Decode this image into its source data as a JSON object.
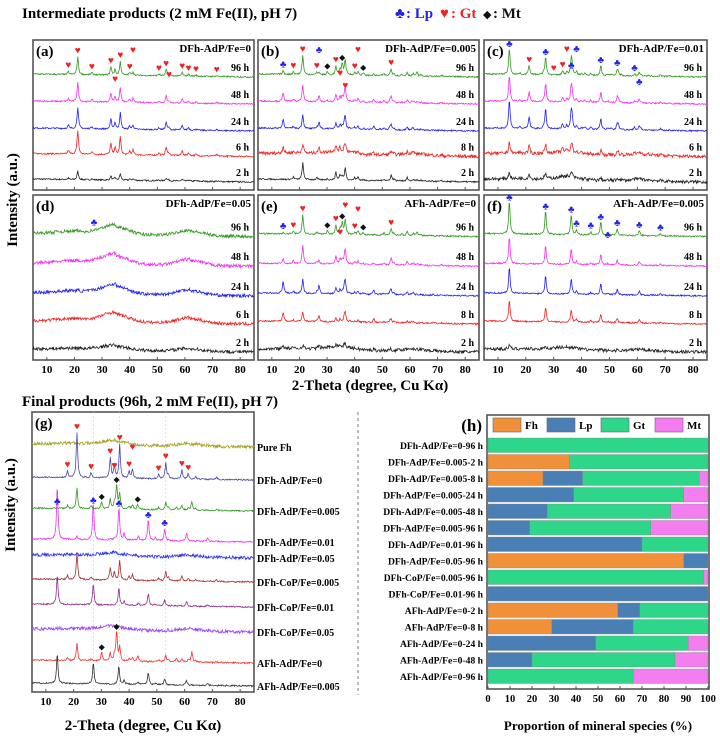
{
  "section_titles": {
    "intermediate": "Intermediate products (2 mM Fe(II), pH 7)",
    "final": "Final products (96h, 2 mM Fe(II), pH 7)"
  },
  "legend_symbols": {
    "lp": {
      "symbol": "♣",
      "label": ": Lp",
      "color": "#2222ee"
    },
    "gt": {
      "symbol": "♥",
      "label": ": Gt",
      "color": "#ee2222"
    },
    "mt": {
      "symbol": "◆",
      "label": ": Mt",
      "color": "#111111"
    }
  },
  "axis_labels": {
    "intensity": "Intensity (a.u.)",
    "two_theta": "2-Theta (degree, Cu Kα)",
    "proportion": "Proportion of mineral species (%)"
  },
  "x_ticks": [
    "10",
    "20",
    "30",
    "40",
    "50",
    "60",
    "70",
    "80"
  ],
  "reference_peaks": {
    "gt": [
      [
        17.8,
        0.15
      ],
      [
        21.2,
        1
      ],
      [
        26.3,
        0.12
      ],
      [
        33.2,
        0.45
      ],
      [
        34.7,
        0.3
      ],
      [
        36.6,
        0.75
      ],
      [
        40,
        0.15
      ],
      [
        41.2,
        0.2
      ],
      [
        50.6,
        0.1
      ],
      [
        53.2,
        0.35
      ],
      [
        54.2,
        0.1
      ],
      [
        59,
        0.2
      ],
      [
        61.3,
        0.12
      ],
      [
        64,
        0.06
      ],
      [
        71.5,
        0.05
      ]
    ],
    "lp": [
      [
        14.1,
        1
      ],
      [
        27.1,
        0.7
      ],
      [
        36.3,
        0.6
      ],
      [
        38.2,
        0.12
      ],
      [
        43.3,
        0.08
      ],
      [
        46.9,
        0.4
      ],
      [
        49.4,
        0.05
      ],
      [
        52.8,
        0.2
      ],
      [
        60.7,
        0.15
      ],
      [
        68.3,
        0.06
      ]
    ],
    "mt": [
      [
        30.1,
        0.3
      ],
      [
        35.5,
        1
      ],
      [
        43.1,
        0.2
      ],
      [
        57,
        0.12
      ],
      [
        62.6,
        0.35
      ]
    ],
    "fh": [
      [
        35,
        0.3,
        4.5
      ],
      [
        62,
        0.18,
        4.5
      ],
      [
        22,
        0.1,
        8
      ]
    ]
  },
  "chart_data": [
    {
      "type": "line",
      "panel": "(a)",
      "title": "DFh-AdP/Fe=0",
      "xlim": [
        5,
        85
      ],
      "xlabel": "2-Theta (degree, Cu Kα)",
      "ylabel": "Intensity (a.u.)",
      "series": [
        {
          "name": "2 h",
          "color": "#222222",
          "phases": {
            "gt": 0.35
          }
        },
        {
          "name": "6 h",
          "color": "#ee2222",
          "phases": {
            "gt": 1.0
          }
        },
        {
          "name": "24 h",
          "color": "#2222ee",
          "phases": {
            "gt": 0.9
          }
        },
        {
          "name": "48 h",
          "color": "#ee33ee",
          "phases": {
            "gt": 0.8
          }
        },
        {
          "name": "96 h",
          "color": "#339922",
          "phases": {
            "gt": 0.75
          },
          "markers": [
            {
              "type": "gt",
              "x": [
                17.8,
                21.2,
                26.3,
                33.2,
                34.7,
                36.6,
                40,
                41.2,
                50.6,
                53.2,
                54.2,
                59,
                61.3,
                64,
                71.5
              ]
            }
          ]
        }
      ]
    },
    {
      "type": "line",
      "panel": "(b)",
      "title": "DFh-AdP/Fe=0.005",
      "xlim": [
        5,
        85
      ],
      "series": [
        {
          "name": "2 h",
          "color": "#222222",
          "phases": {
            "gt": 0.7,
            "mt": 0.15
          }
        },
        {
          "name": "8 h",
          "color": "#ee2222",
          "phases": {
            "gt": 0.4,
            "lp": 0.3,
            "fh": 0.4
          }
        },
        {
          "name": "24 h",
          "color": "#2222ee",
          "phases": {
            "gt": 0.6,
            "lp": 0.4,
            "mt": 0.1
          }
        },
        {
          "name": "48 h",
          "color": "#ee33ee",
          "phases": {
            "gt": 0.7,
            "lp": 0.35,
            "mt": 0.2
          }
        },
        {
          "name": "96 h",
          "color": "#339922",
          "phases": {
            "gt": 0.8,
            "lp": 0.15,
            "mt": 0.45
          },
          "markers": [
            {
              "type": "lp",
              "x": [
                14.1,
                27.1
              ]
            },
            {
              "type": "gt",
              "x": [
                17.8,
                21.2,
                26.3,
                33.2,
                34.7,
                36.6,
                40,
                41.2,
                53.2
              ]
            },
            {
              "type": "mt",
              "x": [
                30.1,
                35.5,
                43.1
              ]
            }
          ]
        }
      ]
    },
    {
      "type": "line",
      "panel": "(c)",
      "title": "DFh-AdP/Fe=0.01",
      "xlim": [
        5,
        85
      ],
      "series": [
        {
          "name": "2 h",
          "color": "#222222",
          "phases": {
            "lp": 0.3,
            "gt": 0.2,
            "fh": 0.3
          }
        },
        {
          "name": "6 h",
          "color": "#ee2222",
          "phases": {
            "lp": 0.5,
            "gt": 0.3,
            "fh": 0.3
          }
        },
        {
          "name": "24 h",
          "color": "#2222ee",
          "phases": {
            "lp": 1.2,
            "gt": 0.5
          }
        },
        {
          "name": "48 h",
          "color": "#ee33ee",
          "phases": {
            "lp": 1.1,
            "gt": 0.4
          }
        },
        {
          "name": "96 h",
          "color": "#339922",
          "phases": {
            "lp": 1.1,
            "gt": 0.4
          },
          "markers": [
            {
              "type": "lp",
              "x": [
                14.1,
                27.1,
                36.3,
                38.2,
                46.9,
                52.8,
                59,
                60.7
              ]
            },
            {
              "type": "gt",
              "x": [
                21.2,
                30,
                33.2,
                34.7
              ]
            }
          ]
        }
      ]
    },
    {
      "type": "line",
      "panel": "(d)",
      "title": "DFh-AdP/Fe=0.05",
      "xlim": [
        5,
        85
      ],
      "series": [
        {
          "name": "2 h",
          "color": "#222222",
          "phases": {
            "fh": 0.5
          }
        },
        {
          "name": "6 h",
          "color": "#ee2222",
          "phases": {
            "fh": 1.0
          }
        },
        {
          "name": "24 h",
          "color": "#2222ee",
          "phases": {
            "fh": 1.0
          }
        },
        {
          "name": "48 h",
          "color": "#ee33ee",
          "phases": {
            "fh": 1.1
          }
        },
        {
          "name": "96 h",
          "color": "#339922",
          "phases": {
            "fh": 1.0,
            "lp": 0.05
          },
          "markers": [
            {
              "type": "lp",
              "x": [
                27.1
              ]
            }
          ]
        }
      ]
    },
    {
      "type": "line",
      "panel": "(e)",
      "title": "AFh-AdP/Fe=0",
      "xlim": [
        5,
        85
      ],
      "series": [
        {
          "name": "2 h",
          "color": "#222222",
          "phases": {
            "lp": 0.15,
            "gt": 0.15,
            "fh": 0.4
          }
        },
        {
          "name": "8 h",
          "color": "#ee2222",
          "phases": {
            "lp": 0.4,
            "gt": 0.4
          }
        },
        {
          "name": "24 h",
          "color": "#2222ee",
          "phases": {
            "lp": 0.5,
            "gt": 0.6,
            "mt": 0.1
          }
        },
        {
          "name": "48 h",
          "color": "#ee33ee",
          "phases": {
            "lp": 0.2,
            "gt": 0.8,
            "mt": 0.2
          }
        },
        {
          "name": "96 h",
          "color": "#339922",
          "phases": {
            "gt": 0.8,
            "mt": 0.5,
            "lp": 0.05
          },
          "markers": [
            {
              "type": "lp",
              "x": [
                14.1
              ]
            },
            {
              "type": "gt",
              "x": [
                17.8,
                21.2,
                33.2,
                34.7,
                36.6,
                40,
                41.2,
                53.2
              ]
            },
            {
              "type": "mt",
              "x": [
                30.1,
                35.5,
                43.1
              ]
            }
          ]
        }
      ]
    },
    {
      "type": "line",
      "panel": "(f)",
      "title": "AFh-AdP/Fe=0.005",
      "xlim": [
        5,
        85
      ],
      "series": [
        {
          "name": "2 h",
          "color": "#222222",
          "phases": {
            "lp": 0.15,
            "fh": 0.3
          }
        },
        {
          "name": "8 h",
          "color": "#ee2222",
          "phases": {
            "lp": 0.9
          }
        },
        {
          "name": "24 h",
          "color": "#2222ee",
          "phases": {
            "lp": 1.1
          }
        },
        {
          "name": "48 h",
          "color": "#ee33ee",
          "phases": {
            "lp": 1.1
          }
        },
        {
          "name": "96 h",
          "color": "#339922",
          "phases": {
            "lp": 1.4
          },
          "markers": [
            {
              "type": "lp",
              "x": [
                14.1,
                27.1,
                36.3,
                38.2,
                43.3,
                46.9,
                49.4,
                52.8,
                60.7,
                68.3
              ]
            }
          ]
        }
      ]
    },
    {
      "type": "line",
      "panel": "(g)",
      "title": "",
      "xlim": [
        5,
        85
      ],
      "xlabel": "2-Theta (degree, Cu Kα)",
      "ylabel": "Intensity (a.u.)",
      "series": [
        {
          "name": "Pure Fh",
          "color": "#a8a020",
          "phases": {
            "fh": 0.4
          }
        },
        {
          "name": "DFh-AdP/Fe=0",
          "color": "#4848a8",
          "phases": {
            "gt": 1.5
          },
          "markers": [
            {
              "type": "gt",
              "x": [
                17.8,
                21.2,
                26.3,
                33.2,
                34.7,
                36.6,
                40,
                41.2,
                50.6,
                53.2,
                59,
                61.3
              ]
            }
          ]
        },
        {
          "name": "DFh-AdP/Fe=0.005",
          "color": "#339922",
          "phases": {
            "gt": 0.7,
            "mt": 0.8
          },
          "markers": [
            {
              "type": "lp",
              "x": [
                14.1,
                27.1
              ]
            },
            {
              "type": "mt",
              "x": [
                30.1,
                35.5,
                43.1
              ]
            }
          ]
        },
        {
          "name": "DFh-AdP/Fe=0.01",
          "color": "#ee33ee",
          "phases": {
            "lp": 1.8,
            "gt": 0.1
          },
          "markers": [
            {
              "type": "lp",
              "x": [
                36.3,
                46.9,
                52.8
              ]
            }
          ]
        },
        {
          "name": "DFh-AdP/Fe=0.05",
          "color": "#3333ee",
          "phases": {
            "fh": 0.3
          }
        },
        {
          "name": "DFh-CoP/Fe=0.005",
          "color": "#a03030",
          "phases": {
            "gt": 0.9
          }
        },
        {
          "name": "DFh-CoP/Fe=0.01",
          "color": "#903090",
          "phases": {
            "lp": 1.0
          }
        },
        {
          "name": "DFh-CoP/Fe=0.05",
          "color": "#9a40f0",
          "phases": {
            "fh": 0.35
          }
        },
        {
          "name": "AFh-AdP/Fe=0",
          "color": "#ee3333",
          "phases": {
            "gt": 0.6,
            "mt": 1.0
          },
          "markers": [
            {
              "type": "mt",
              "x": [
                30.1,
                35.5
              ]
            }
          ]
        },
        {
          "name": "AFh-AdP/Fe=0.005",
          "color": "#333333",
          "phases": {
            "lp": 1.0
          }
        }
      ]
    },
    {
      "type": "bar",
      "orientation": "horizontal-stacked",
      "panel": "(h)",
      "xlabel": "Proportion of mineral species (%)",
      "xlim": [
        0,
        100
      ],
      "x_ticks": [
        "0",
        "10",
        "20",
        "30",
        "40",
        "50",
        "60",
        "70",
        "80",
        "90",
        "100"
      ],
      "legend_position": "top",
      "series": [
        {
          "name": "Fh",
          "color": "#f0913a"
        },
        {
          "name": "Lp",
          "color": "#4a7fb5"
        },
        {
          "name": "Gt",
          "color": "#2ed68a"
        },
        {
          "name": "Mt",
          "color": "#f47ef0"
        }
      ],
      "categories": [
        {
          "label": "DFh-AdP/Fe=0-96 h",
          "values": [
            0,
            0,
            100,
            0
          ]
        },
        {
          "label": "DFh-AdP/Fe=0.005-2 h",
          "values": [
            37,
            0,
            63,
            0
          ]
        },
        {
          "label": "DFh-AdP/Fe=0.005-8 h",
          "values": [
            25,
            18,
            53,
            4
          ]
        },
        {
          "label": "DFh-AdP/Fe=0.005-24 h",
          "values": [
            0,
            39,
            50,
            11
          ]
        },
        {
          "label": "DFh-AdP/Fe=0.005-48 h",
          "values": [
            0,
            27,
            56,
            17
          ]
        },
        {
          "label": "DFh-AdP/Fe=0.005-96 h",
          "values": [
            0,
            19,
            55,
            26
          ]
        },
        {
          "label": "DFh-AdP/Fe=0.01-96 h",
          "values": [
            0,
            70,
            30,
            0
          ]
        },
        {
          "label": "DFh-AdP/Fe=0.05-96 h",
          "values": [
            89,
            11,
            0,
            0
          ]
        },
        {
          "label": "DFh-CoP/Fe=0.005-96 h",
          "values": [
            0,
            0,
            98,
            2
          ]
        },
        {
          "label": "DFh-CoP/Fe=0.01-96 h",
          "values": [
            0,
            100,
            0,
            0
          ]
        },
        {
          "label": "AFh-AdP/Fe=0-2 h",
          "values": [
            59,
            10,
            31,
            0
          ]
        },
        {
          "label": "AFh-AdP/Fe=0-8 h",
          "values": [
            29,
            37,
            34,
            0
          ]
        },
        {
          "label": "AFh-AdP/Fe=0-24 h",
          "values": [
            0,
            49,
            42,
            9
          ]
        },
        {
          "label": "AFh-AdP/Fe=0-48 h",
          "values": [
            0,
            20,
            65,
            15
          ]
        },
        {
          "label": "AFh-AdP/Fe=0-96 h",
          "values": [
            0,
            0,
            66,
            34
          ]
        }
      ]
    }
  ]
}
